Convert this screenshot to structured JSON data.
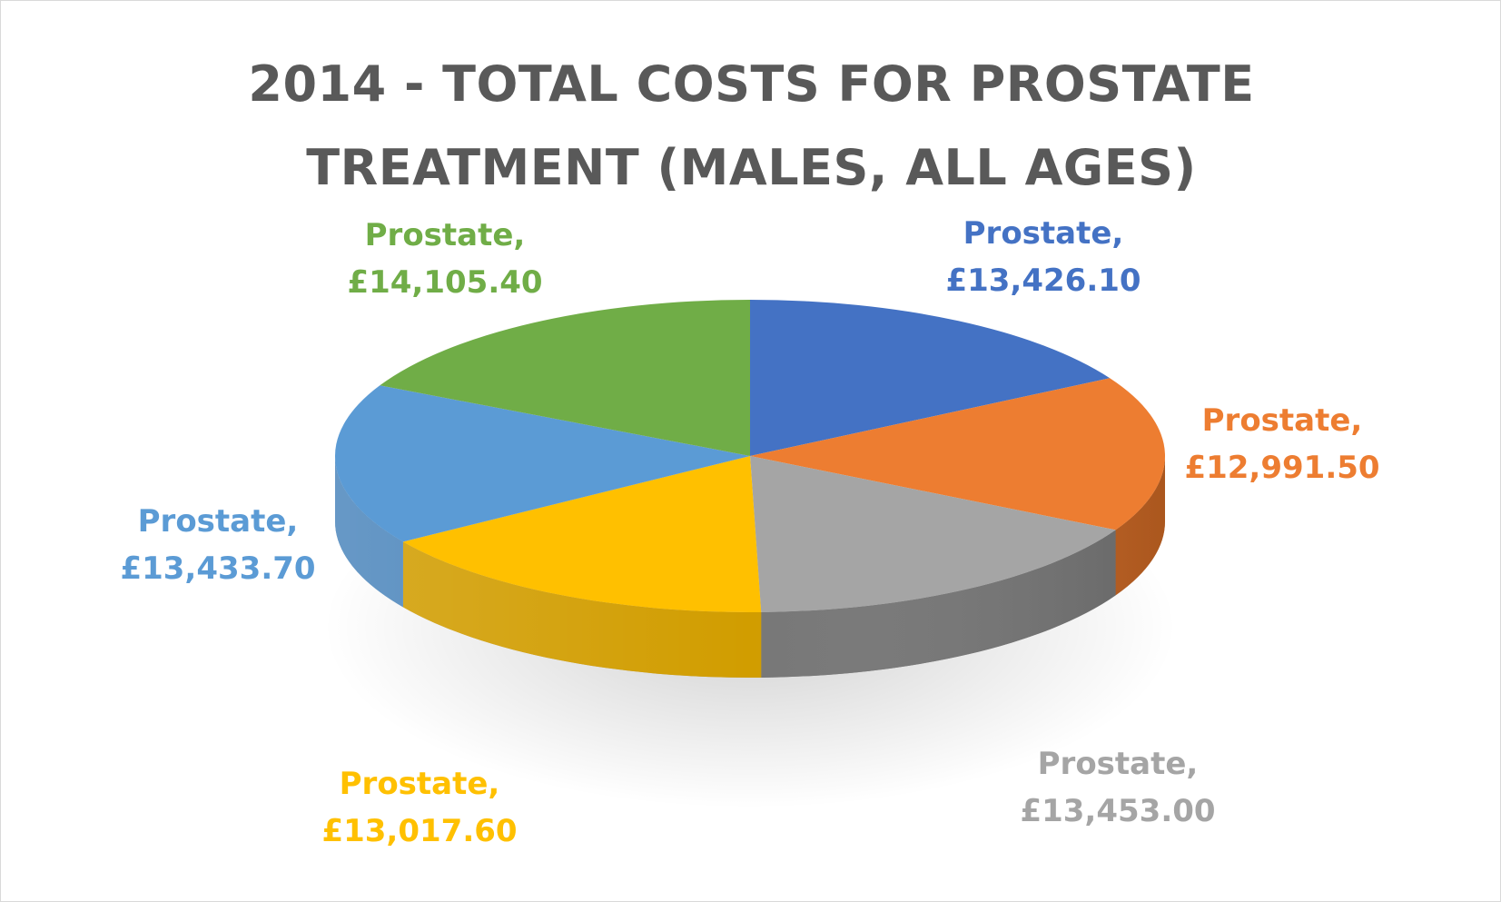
{
  "chart_data": {
    "type": "pie",
    "title_lines": [
      "2014 - TOTAL COSTS FOR PROSTATE",
      "TREATMENT (MALES, ALL AGES)"
    ],
    "series": [
      {
        "slices": [
          {
            "category": "Prostate,",
            "label": "£13,426.10",
            "value": 13426.1,
            "color": "#4472C4",
            "side": "#2F5597"
          },
          {
            "category": "Prostate,",
            "label": "£12,991.50",
            "value": 12991.5,
            "color": "#ED7D31",
            "side": "#9E4A12"
          },
          {
            "category": "Prostate,",
            "label": "£13,453.00",
            "value": 13453.0,
            "color": "#A5A5A5",
            "side": "#3F3F3F"
          },
          {
            "category": "Prostate,",
            "label": "£13,017.60",
            "value": 13017.6,
            "color": "#FFC000",
            "side": "#9A7300"
          },
          {
            "category": "Prostate,",
            "label": "£13,433.70",
            "value": 13433.7,
            "color": "#5B9BD5",
            "side": "#3A6E9E"
          },
          {
            "category": "Prostate,",
            "label": "£14,105.40",
            "value": 14105.4,
            "color": "#70AD47",
            "side": "#4A7A2C"
          }
        ]
      }
    ]
  }
}
